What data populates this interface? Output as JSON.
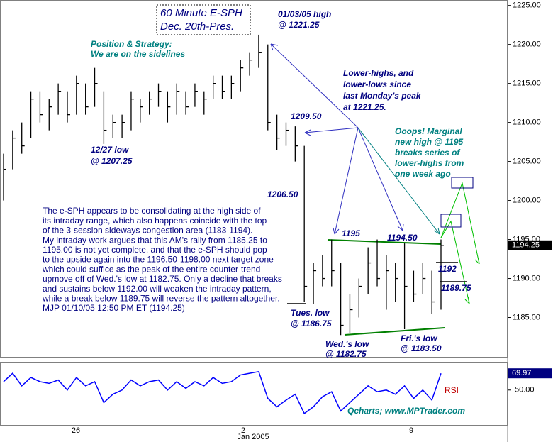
{
  "chart_data": {
    "type": "ohlc",
    "title_lines": [
      "60 Minute E-SPH",
      "Dec. 20th-Pres."
    ],
    "high": [
      1206,
      1209,
      1210,
      1214,
      1214,
      1213,
      1215,
      1214,
      1216,
      1215,
      1217,
      1214,
      1211,
      1211,
      1214,
      1213,
      1214,
      1215,
      1214,
      1215,
      1214,
      1215,
      1214,
      1216,
      1216,
      1216,
      1218,
      1219,
      1221.25,
      1220,
      1211,
      1210,
      1209.5,
      1207,
      1192,
      1193,
      1195,
      1192,
      1188,
      1190,
      1194,
      1195,
      1193,
      1192,
      1194.5,
      1191,
      1192,
      1191,
      1195
    ],
    "low": [
      1200,
      1204,
      1206,
      1208,
      1210,
      1209,
      1211,
      1210,
      1211,
      1211,
      1212,
      1207.25,
      1208,
      1208,
      1209,
      1210,
      1211,
      1212,
      1210,
      1211,
      1211,
      1212,
      1211,
      1213,
      1213,
      1213,
      1214,
      1216,
      1217,
      1209,
      1206.5,
      1207,
      1205,
      1187,
      1186.75,
      1189,
      1189,
      1182.75,
      1183,
      1185,
      1188,
      1189,
      1186,
      1187,
      1183.5,
      1187,
      1188,
      1185.5,
      1186
    ],
    "close": [
      1204,
      1208,
      1207,
      1213,
      1211,
      1212,
      1214,
      1211,
      1215,
      1212,
      1215,
      1209,
      1210,
      1210,
      1213,
      1212,
      1213,
      1214,
      1212,
      1214,
      1212,
      1214,
      1213,
      1215,
      1214,
      1215,
      1217,
      1218,
      1219,
      1210,
      1208,
      1209,
      1207,
      1189,
      1191,
      1190,
      1191,
      1184,
      1186,
      1189,
      1192,
      1190,
      1191,
      1190,
      1189,
      1188,
      1190,
      1187,
      1194.25
    ],
    "color": "#000000",
    "ylim": [
      1180.5,
      1225.7
    ],
    "yticks": [
      {
        "value": 1185,
        "label": "1185.00"
      },
      {
        "value": 1190,
        "label": "1190.00"
      },
      {
        "value": 1195,
        "label": "1195.00"
      },
      {
        "value": 1200,
        "label": "1200.00"
      },
      {
        "value": 1205,
        "label": "1205.00"
      },
      {
        "value": 1210,
        "label": "1210.00"
      },
      {
        "value": 1215,
        "label": "1215.00"
      },
      {
        "value": 1220,
        "label": "1220.00"
      },
      {
        "value": 1225,
        "label": "1225.00"
      }
    ],
    "x_labels": [
      "26",
      "2",
      "Jan 2005",
      "9"
    ],
    "rsi": {
      "name": "RSI",
      "color": "#0000ff",
      "values": [
        60,
        70,
        55,
        65,
        60,
        58,
        62,
        50,
        65,
        55,
        60,
        35,
        45,
        50,
        62,
        55,
        60,
        62,
        50,
        60,
        52,
        60,
        55,
        65,
        58,
        60,
        68,
        70,
        72,
        40,
        30,
        38,
        45,
        22,
        30,
        42,
        48,
        25,
        35,
        45,
        55,
        48,
        50,
        45,
        55,
        40,
        50,
        38,
        69.97
      ],
      "ylim": [
        10,
        82
      ],
      "yticks": [
        {
          "value": 50,
          "label": "50.00"
        }
      ]
    },
    "annotations": [
      "01/03/05 high",
      "@ 1221.25",
      "Position & Strategy:",
      "We are on the sidelines",
      "Lower-highs, and",
      "lower-lows since",
      "last Monday's peak",
      "at 1221.25.",
      "1209.50",
      "Ooops! Marginal",
      "new high @ 1195",
      "breaks series of",
      "lower-highs from",
      "one week ago",
      "12/27 low",
      "@ 1207.25",
      "1206.50",
      "1195",
      "1194.50",
      "1192",
      "1189.75",
      "Tues. low",
      "@ 1186.75",
      "Wed.'s low",
      "@ 1182.75",
      "Fri.'s low",
      "@ 1183.50",
      "Qcharts; www.MPTrader.com"
    ],
    "commentary": [
      "The e-SPH appears to be consolidating at the high side of",
      "its intraday range, which also happens coincide with the top",
      "of the 3-session sideways congestion area (1183-1194).",
      "My intraday work argues that this AM's rally from 1185.25 to",
      "1195.00 is not yet complete, and that the e-SPH should pop",
      "to the upside again into the 1196.50-1198.00 next target zone",
      "which could suffice as the peak of the entire counter-trend",
      "upmove off of Wed.'s low at 1182.75. Only a decline that breaks",
      "and sustains below 1192.00 will weaken the intraday pattern,",
      "while a break below 1189.75 will reverse the pattern altogether.",
      "MJP 01/10/05  12:50 PM ET (1194.25)"
    ]
  }
}
